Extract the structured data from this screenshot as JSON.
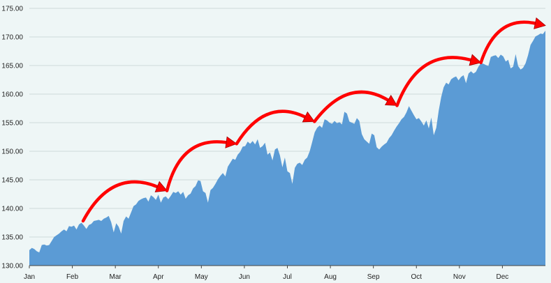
{
  "chart_data": {
    "type": "area",
    "title": "",
    "xlabel": "",
    "ylabel": "",
    "ylim": [
      130,
      175
    ],
    "yticks": [
      "130.00",
      "135.00",
      "140.00",
      "145.00",
      "150.00",
      "155.00",
      "160.00",
      "165.00",
      "170.00",
      "175.00"
    ],
    "grid": true,
    "legend": "none",
    "months": [
      "Jan",
      "Feb",
      "Mar",
      "Apr",
      "May",
      "Jun",
      "Jul",
      "Aug",
      "Sep",
      "Oct",
      "Nov",
      "Dec"
    ],
    "fill_color": "#5b9bd5",
    "arrow_color": "#ff0000",
    "series": [
      {
        "x_start_month": 0,
        "x_end_month": 12,
        "values": [
          132.7,
          133.1,
          132.9,
          132.5,
          132.3,
          133.6,
          133.7,
          133.5,
          133.6,
          134.3,
          135.0,
          135.3,
          135.6,
          136.0,
          136.3,
          136.0,
          136.9,
          136.8,
          137.0,
          136.3,
          137.2,
          137.5,
          137.0,
          136.4,
          137.1,
          137.3,
          137.8,
          137.9,
          138.0,
          137.8,
          138.2,
          138.4,
          138.7,
          137.6,
          135.8,
          137.4,
          136.8,
          135.6,
          137.8,
          138.6,
          138.2,
          139.3,
          140.4,
          140.7,
          141.3,
          141.6,
          141.8,
          141.9,
          141.2,
          142.3,
          142.0,
          141.5,
          142.4,
          141.0,
          141.9,
          142.1,
          141.6,
          142.2,
          142.9,
          142.7,
          143.0,
          142.4,
          142.9,
          141.7,
          142.3,
          142.6,
          143.5,
          143.9,
          144.9,
          144.8,
          143.0,
          142.7,
          141.0,
          143.2,
          143.6,
          144.3,
          145.1,
          145.7,
          146.2,
          145.6,
          147.3,
          148.0,
          148.7,
          148.5,
          149.4,
          149.9,
          150.8,
          150.9,
          151.7,
          151.3,
          151.8,
          151.2,
          152.1,
          150.6,
          150.9,
          151.5,
          149.4,
          149.8,
          148.4,
          150.3,
          150.6,
          149.3,
          147.2,
          148.9,
          146.5,
          146.2,
          144.3,
          147.1,
          147.8,
          148.0,
          147.6,
          148.5,
          148.9,
          150.0,
          151.6,
          153.3,
          154.1,
          154.5,
          154.1,
          155.6,
          155.4,
          155.0,
          154.8,
          155.3,
          154.9,
          155.1,
          154.7,
          156.9,
          156.6,
          155.2,
          155.0,
          154.8,
          155.8,
          155.3,
          153.0,
          152.1,
          151.7,
          151.3,
          153.1,
          152.8,
          150.7,
          150.3,
          150.8,
          151.2,
          151.5,
          152.3,
          152.8,
          153.6,
          154.3,
          154.9,
          155.6,
          156.0,
          156.8,
          157.9,
          157.1,
          156.3,
          155.6,
          155.8,
          155.2,
          154.5,
          155.4,
          154.0,
          155.9,
          152.8,
          154.1,
          157.1,
          159.5,
          161.2,
          162.0,
          161.7,
          162.6,
          162.9,
          163.1,
          162.4,
          163.0,
          163.3,
          161.9,
          163.6,
          164.0,
          163.6,
          163.9,
          164.8,
          165.4,
          165.3,
          165.1,
          164.9,
          166.5,
          166.7,
          166.8,
          166.3,
          166.9,
          166.6,
          165.7,
          166.0,
          164.5,
          164.8,
          167.0,
          164.9,
          164.3,
          164.6,
          165.4,
          166.8,
          168.6,
          169.3,
          170.1,
          170.3,
          170.6,
          170.5,
          171.1
        ]
      }
    ],
    "annotations": [
      {
        "type": "arrow",
        "from": [
          1.25,
          137.8
        ],
        "to": [
          3.2,
          143.1
        ]
      },
      {
        "type": "arrow",
        "from": [
          3.2,
          143.1
        ],
        "to": [
          4.82,
          151.3
        ]
      },
      {
        "type": "arrow",
        "from": [
          4.82,
          151.3
        ],
        "to": [
          6.63,
          155.2
        ]
      },
      {
        "type": "arrow",
        "from": [
          6.63,
          155.2
        ],
        "to": [
          8.55,
          158.0
        ]
      },
      {
        "type": "arrow",
        "from": [
          8.55,
          158.0
        ],
        "to": [
          10.5,
          165.5
        ]
      },
      {
        "type": "arrow",
        "from": [
          10.5,
          165.5
        ],
        "to": [
          12.0,
          172.0
        ]
      }
    ]
  }
}
